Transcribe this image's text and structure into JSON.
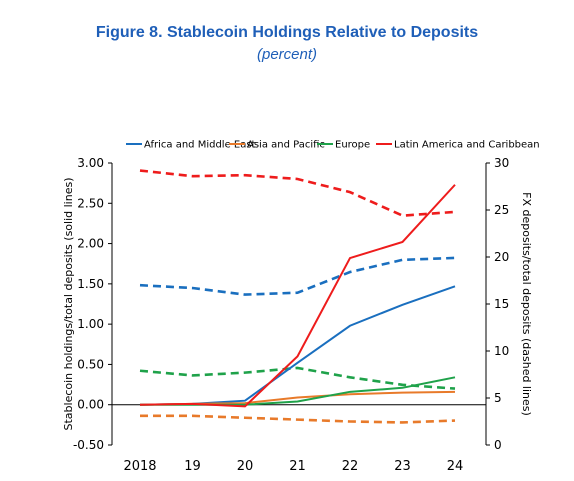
{
  "title": "Figure 8. Stablecoin Holdings Relative to Deposits",
  "subtitle": "(percent)",
  "chart_data": {
    "type": "line",
    "categories": [
      "2018",
      "19",
      "20",
      "21",
      "22",
      "23",
      "24"
    ],
    "ylabel_left": "Stablecoin holdings/total deposits (solid lines)",
    "ylabel_right": "FX deposits/total deposits (dashed lines)",
    "ylim_left": [
      -0.5,
      3.0
    ],
    "yticks_left": [
      "3.00",
      "2.50",
      "2.00",
      "1.50",
      "1.00",
      "0.50",
      "0.00",
      "-0.50"
    ],
    "ylim_right": [
      0,
      30
    ],
    "yticks_right": [
      "30",
      "25",
      "20",
      "15",
      "10",
      "5",
      "0"
    ],
    "legend_position": "top",
    "series": [
      {
        "name": "Africa and Middle East",
        "color": "#1a6fbf",
        "solid": [
          0.0,
          0.01,
          0.05,
          0.52,
          0.98,
          1.24,
          1.47
        ],
        "dashed": [
          17.0,
          16.7,
          16.0,
          16.2,
          18.4,
          19.7,
          19.9
        ]
      },
      {
        "name": "Asia and Pacific",
        "color": "#e87a2a",
        "solid": [
          0.0,
          0.01,
          0.02,
          0.09,
          0.13,
          0.15,
          0.16
        ],
        "dashed": [
          3.1,
          3.1,
          2.9,
          2.7,
          2.5,
          2.4,
          2.6
        ]
      },
      {
        "name": "Europe",
        "color": "#1fa24a",
        "solid": [
          0.0,
          0.0,
          0.0,
          0.04,
          0.16,
          0.21,
          0.34
        ],
        "dashed": [
          7.9,
          7.4,
          7.7,
          8.2,
          7.2,
          6.4,
          6.0
        ]
      },
      {
        "name": "Latin America and Caribbean",
        "color": "#ee1c1c",
        "solid": [
          0.0,
          0.01,
          -0.02,
          0.6,
          1.82,
          2.02,
          2.73
        ],
        "dashed": [
          29.2,
          28.6,
          28.7,
          28.3,
          26.9,
          24.4,
          24.8
        ]
      }
    ]
  }
}
